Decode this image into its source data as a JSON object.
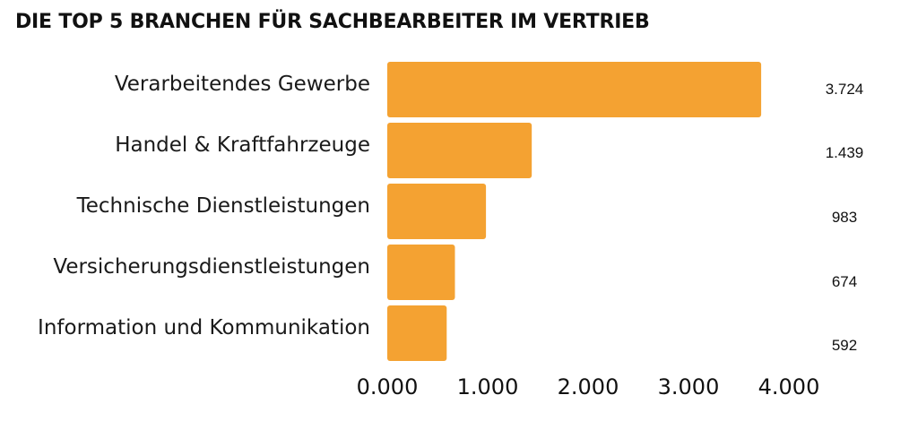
{
  "chart_data": {
    "type": "bar",
    "orientation": "horizontal",
    "title": "DIE TOP 5 BRANCHEN FÜR SACHBEARBEITER IM VERTRIEB",
    "categories": [
      "Verarbeitendes Gewerbe",
      "Handel & Kraftfahrzeuge",
      "Technische Dienstleistungen",
      "Versicherungsdienstleistungen",
      "Information und Kommunikation"
    ],
    "values": [
      3724,
      1439,
      983,
      674,
      592
    ],
    "value_labels": [
      "3.724",
      "1.439",
      "983",
      "674",
      "592"
    ],
    "xlim": [
      0,
      4000
    ],
    "x_ticks": [
      0,
      1000,
      2000,
      3000,
      4000
    ],
    "x_tick_labels": [
      "0.000",
      "1.000",
      "2.000",
      "3.000",
      "4.000"
    ],
    "bar_color": "#F4A232",
    "grid": false,
    "legend": false
  }
}
